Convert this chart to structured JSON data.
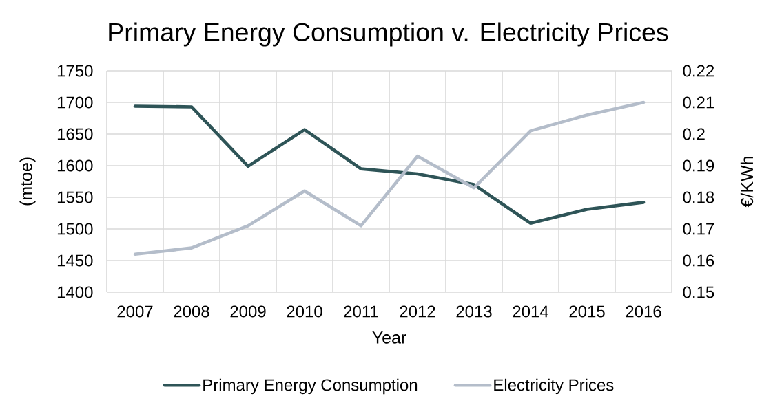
{
  "chart_data": {
    "type": "line",
    "title": "Primary Energy Consumption v. Electricity Prices",
    "xlabel": "Year",
    "ylabel": "(mtoe)",
    "y2label": "€/KWh",
    "categories": [
      "2007",
      "2008",
      "2009",
      "2010",
      "2011",
      "2012",
      "2013",
      "2014",
      "2015",
      "2016"
    ],
    "series": [
      {
        "name": "Primary Energy Consumption",
        "color": "#2e5457",
        "values": [
          1694,
          1693,
          1599,
          1657,
          1595,
          1587,
          1570,
          1509,
          1531,
          1542
        ]
      },
      {
        "name": "Electricity Prices",
        "color": "#b4bdca",
        "axis": "y2",
        "values": [
          0.162,
          0.164,
          0.171,
          0.182,
          0.171,
          0.193,
          0.183,
          0.201,
          0.206,
          0.21
        ]
      }
    ],
    "ylim": [
      1400,
      1750
    ],
    "yticks": [
      1400,
      1450,
      1500,
      1550,
      1600,
      1650,
      1700,
      1750
    ],
    "y2lim": [
      0.15,
      0.22
    ],
    "y2ticks": [
      0.15,
      0.16,
      0.17,
      0.18,
      0.19,
      0.2,
      0.21,
      0.22
    ],
    "grid": true,
    "legend": "bottom",
    "line_style": "solid"
  }
}
